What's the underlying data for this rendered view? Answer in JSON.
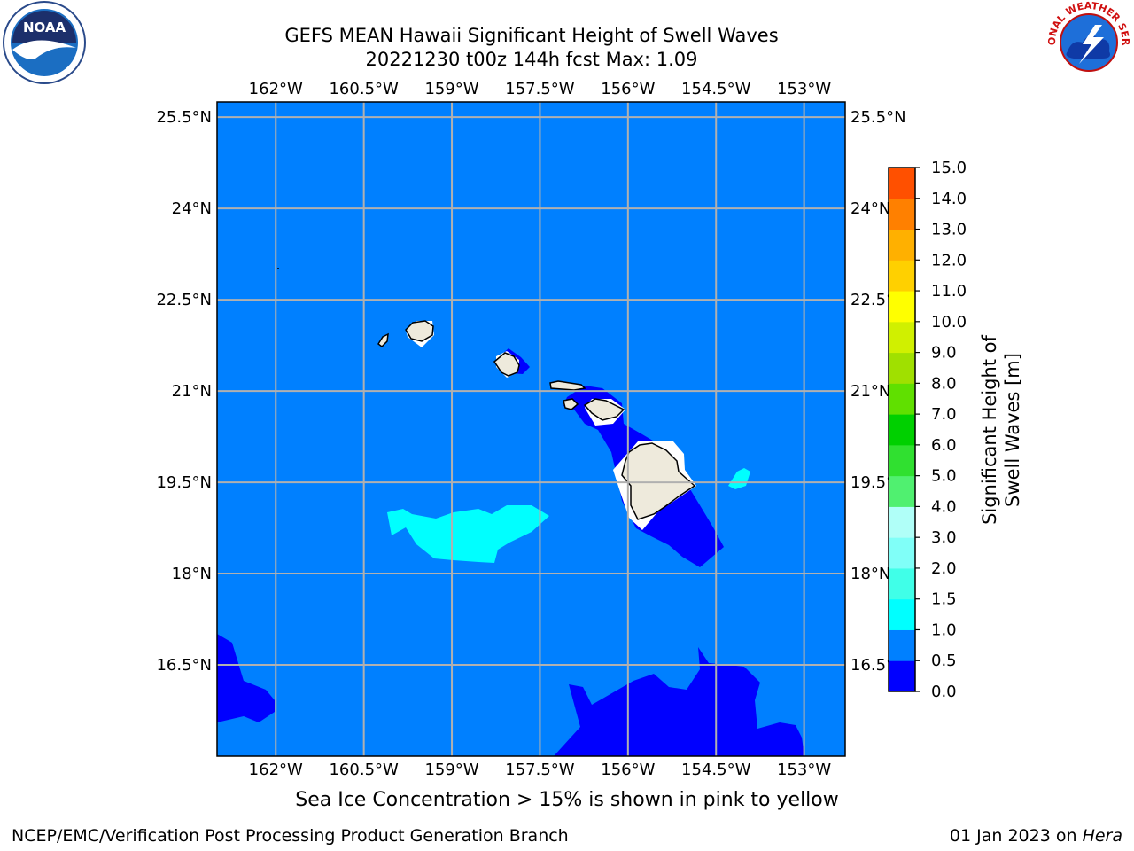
{
  "header": {
    "title_line1": "GEFS MEAN Hawaii Significant Height of Swell Waves",
    "title_line2": "20221230 t00z 144h fcst   Max: 1.09"
  },
  "map": {
    "lon_labels": [
      "162°W",
      "160.5°W",
      "159°W",
      "157.5°W",
      "156°W",
      "154.5°W",
      "153°W"
    ],
    "lat_labels": [
      "25.5°N",
      "24°N",
      "22.5°N",
      "21°N",
      "19.5°N",
      "18°N",
      "16.5°N"
    ],
    "lon_values": [
      -162,
      -160.5,
      -159,
      -157.5,
      -156,
      -154.5,
      -153
    ],
    "lat_values": [
      25.5,
      24,
      22.5,
      21,
      19.5,
      18,
      16.5
    ],
    "lon_range": [
      -163,
      -152.3
    ],
    "lat_range": [
      15.0,
      25.75
    ],
    "ocean_color": "#0080ff",
    "land_color": "#eeeadc",
    "grid_color": "#b0b0b0"
  },
  "colorbar": {
    "label": "Significant Height of Swell Waves [m]",
    "ticks": [
      "0.0",
      "0.5",
      "1.0",
      "1.5",
      "2.0",
      "3.0",
      "4.0",
      "5.0",
      "6.0",
      "7.0",
      "8.0",
      "9.0",
      "10.0",
      "11.0",
      "12.0",
      "13.0",
      "14.0",
      "15.0"
    ],
    "colors": [
      "#0000ff",
      "#0080ff",
      "#00ffff",
      "#40ffe8",
      "#80fff8",
      "#b0fff8",
      "#50f070",
      "#30e030",
      "#00d000",
      "#60e000",
      "#a0e000",
      "#d0f000",
      "#ffff00",
      "#ffd000",
      "#ffb000",
      "#ff8000",
      "#ff5000",
      "#ff2000",
      "#ff0000"
    ]
  },
  "caption": "Sea Ice Concentration > 15% is shown in pink to yellow",
  "footer": {
    "left": "NCEP/EMC/Verification Post Processing Product Generation Branch",
    "date": "01 Jan 2023 on ",
    "machine": "Hera"
  },
  "logos": {
    "noaa_text": "NOAA",
    "nws_text": "NATIONAL WEATHER SERVICE"
  }
}
